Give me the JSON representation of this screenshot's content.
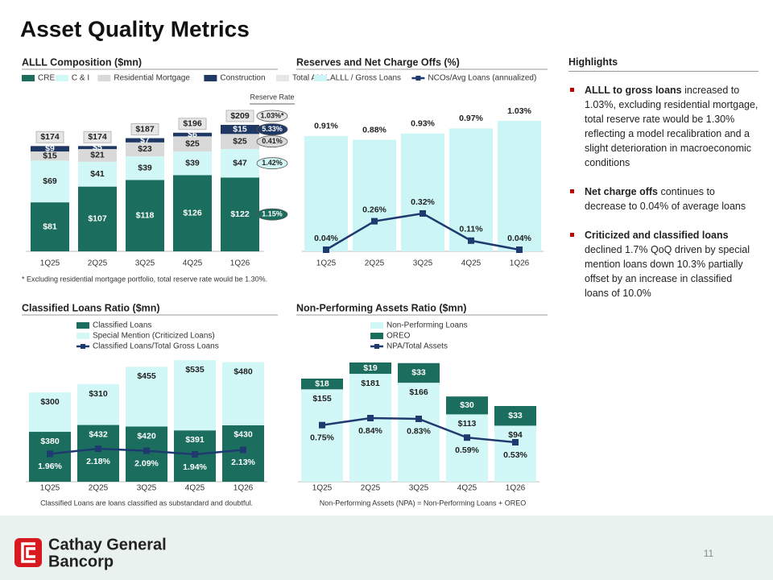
{
  "title": "Asset Quality Metrics",
  "chart_data": [
    {
      "type": "bar",
      "stacked": true,
      "title": "ALLL Composition ($mn)",
      "categories": [
        "1Q25",
        "2Q25",
        "3Q25",
        "4Q25",
        "1Q26"
      ],
      "series": [
        {
          "name": "CRE",
          "color": "#1b6e5e",
          "values": [
            81,
            107,
            118,
            126,
            122
          ],
          "value_labels": [
            "$81",
            "$107",
            "$118",
            "$126",
            "$122"
          ]
        },
        {
          "name": "C & I",
          "color": "#d2f7f7",
          "values": [
            69,
            41,
            39,
            39,
            47
          ],
          "value_labels": [
            "$69",
            "$41",
            "$39",
            "$39",
            "$47"
          ]
        },
        {
          "name": "Residential Mortgage",
          "color": "#d9d9d9",
          "values": [
            15,
            21,
            23,
            25,
            25
          ],
          "value_labels": [
            "$15",
            "$21",
            "$23",
            "$25",
            "$25"
          ]
        },
        {
          "name": "Construction",
          "color": "#1f3864",
          "values": [
            9,
            5,
            7,
            6,
            15
          ],
          "value_labels": [
            "$9",
            "$5",
            "$7",
            "$6",
            "$15"
          ]
        },
        {
          "name": "Total ALLL",
          "color": "#e6e6e6",
          "type": "total",
          "values": [
            174,
            174,
            187,
            196,
            209
          ],
          "value_labels": [
            "$174",
            "$174",
            "$187",
            "$196",
            "$209"
          ]
        }
      ],
      "reserve_rate": {
        "title": "Reserve Rate",
        "labels": [
          "1.15%",
          "1.42%",
          "0.41%",
          "5.33%",
          "1.03%*"
        ]
      },
      "footnote": "* Excluding residential mortgage portfolio, total reserve rate would be 1.30%."
    },
    {
      "type": "bar",
      "stacked": false,
      "title": "Reserves and Net Charge Offs (%)",
      "categories": [
        "1Q25",
        "2Q25",
        "3Q25",
        "4Q25",
        "1Q26"
      ],
      "series": [
        {
          "name": "ALLL / Gross Loans",
          "color": "#ccf6f6",
          "values": [
            0.91,
            0.88,
            0.93,
            0.97,
            1.03
          ],
          "value_labels": [
            "0.91%",
            "0.88%",
            "0.93%",
            "0.97%",
            "1.03%"
          ]
        },
        {
          "name": "NCOs/Avg Loans (annualized)",
          "color": "#1f3a6e",
          "type": "line",
          "axis": "y2",
          "values": [
            0.04,
            0.26,
            0.32,
            0.11,
            0.04
          ],
          "value_labels": [
            "0.04%",
            "0.26%",
            "0.32%",
            "0.11%",
            "0.04%"
          ]
        }
      ]
    },
    {
      "type": "bar",
      "stacked": true,
      "title": "Classified Loans Ratio ($mn)",
      "categories": [
        "1Q25",
        "2Q25",
        "3Q25",
        "4Q25",
        "1Q26"
      ],
      "series": [
        {
          "name": "Classified Loans",
          "color": "#1b6e5e",
          "values": [
            380,
            432,
            420,
            391,
            430
          ],
          "value_labels": [
            "$380",
            "$432",
            "$420",
            "$391",
            "$430"
          ]
        },
        {
          "name": "Special Mention (Criticized Loans)",
          "color": "#d2f7f7",
          "values": [
            300,
            310,
            455,
            535,
            480
          ],
          "value_labels": [
            "$300",
            "$310",
            "$455",
            "$535",
            "$480"
          ]
        },
        {
          "name": "Classified Loans/Total Gross Loans",
          "color": "#1f3a6e",
          "type": "line",
          "axis": "y2",
          "values": [
            1.96,
            2.18,
            2.09,
            1.94,
            2.13
          ],
          "value_labels": [
            "1.96%",
            "2.18%",
            "2.09%",
            "1.94%",
            "2.13%"
          ]
        }
      ],
      "footnote": "Classified Loans are loans classified as substandard and doubtful."
    },
    {
      "type": "bar",
      "stacked": true,
      "title": "Non-Performing Assets Ratio ($mn)",
      "categories": [
        "1Q25",
        "2Q25",
        "3Q25",
        "4Q25",
        "1Q26"
      ],
      "series": [
        {
          "name": "Non-Performing Loans",
          "color": "#d2f7f7",
          "values": [
            155,
            181,
            166,
            113,
            94
          ],
          "value_labels": [
            "$155",
            "$181",
            "$166",
            "$113",
            "$94"
          ]
        },
        {
          "name": "OREO",
          "color": "#1b6e5e",
          "values": [
            18,
            19,
            33,
            30,
            33
          ],
          "value_labels": [
            "$18",
            "$19",
            "$33",
            "$30",
            "$33"
          ]
        },
        {
          "name": "NPA/Total Assets",
          "color": "#1f3a6e",
          "type": "line",
          "axis": "y2",
          "values": [
            0.75,
            0.84,
            0.83,
            0.59,
            0.53
          ],
          "value_labels": [
            "0.75%",
            "0.84%",
            "0.83%",
            "0.59%",
            "0.53%"
          ]
        }
      ],
      "footnote": "Non-Performing Assets (NPA) = Non-Performing Loans + OREO"
    }
  ],
  "highlights": {
    "title": "Highlights",
    "items": [
      {
        "bold": "ALLL to gross loans",
        "text": " increased to 1.03%, excluding residential mortgage, total reserve rate would be 1.30% reflecting a model recalibration and a slight deterioration in macroeconomic conditions"
      },
      {
        "bold": "Net charge offs",
        "text": " continues to decrease to 0.04% of average loans"
      },
      {
        "bold": "Criticized and classified loans",
        "text": " declined 1.7% QoQ driven by special mention loans down 10.3% partially offset by an increase in classified loans of 10.0%"
      }
    ]
  },
  "footer": {
    "logo_line1": "Cathay General",
    "logo_line2": "Bancorp",
    "page_number": "11"
  }
}
